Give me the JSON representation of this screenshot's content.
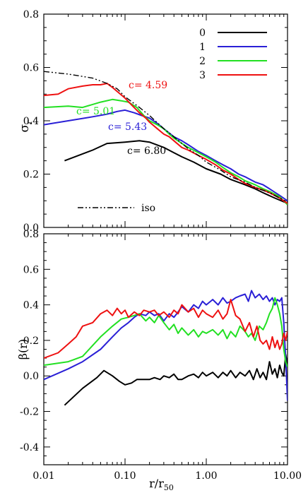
{
  "chart_data": [
    {
      "type": "line",
      "panel": "top",
      "xscale": "log",
      "xlim": [
        0.01,
        10.0
      ],
      "ylim": [
        0.0,
        0.8
      ],
      "ylabel": "σ",
      "ylabel_sub": "r",
      "xticks": [
        0.01,
        0.1,
        1.0,
        10.0
      ],
      "yticks": [
        0.0,
        0.2,
        0.4,
        0.6,
        0.8
      ],
      "ytick_labels": [
        "0.0",
        "0.2",
        "0.4",
        "0.6",
        "0.8"
      ],
      "legend": {
        "placement": "top-right",
        "entries": [
          "0",
          "1",
          "2",
          "3"
        ]
      },
      "iso_legend_label": "iso",
      "series": [
        {
          "name": "0",
          "color": "#000000",
          "values_label": "c= 6.80",
          "x": [
            0.018,
            0.04,
            0.06,
            0.1,
            0.15,
            0.2,
            0.3,
            0.4,
            0.5,
            0.7,
            1.0,
            1.5,
            2.0,
            3.0,
            4.0,
            5.0,
            7.0,
            10.0
          ],
          "y": [
            0.25,
            0.29,
            0.315,
            0.32,
            0.325,
            0.32,
            0.3,
            0.28,
            0.265,
            0.245,
            0.22,
            0.2,
            0.18,
            0.16,
            0.145,
            0.13,
            0.11,
            0.09
          ]
        },
        {
          "name": "1",
          "color": "#2a1fd6",
          "values_label": "c= 5.43",
          "x": [
            0.01,
            0.02,
            0.04,
            0.06,
            0.08,
            0.1,
            0.13,
            0.16,
            0.2,
            0.25,
            0.3,
            0.4,
            0.5,
            0.6,
            0.8,
            1.0,
            1.3,
            1.6,
            2.0,
            2.5,
            3.0,
            4.0,
            5.0,
            6.0,
            8.0,
            10.0
          ],
          "y": [
            0.385,
            0.4,
            0.415,
            0.425,
            0.435,
            0.44,
            0.43,
            0.42,
            0.41,
            0.39,
            0.37,
            0.34,
            0.325,
            0.31,
            0.285,
            0.27,
            0.25,
            0.235,
            0.22,
            0.2,
            0.19,
            0.17,
            0.16,
            0.145,
            0.12,
            0.1
          ]
        },
        {
          "name": "2",
          "color": "#22e022",
          "values_label": "c= 5.01",
          "x": [
            0.01,
            0.02,
            0.03,
            0.05,
            0.07,
            0.09,
            0.11,
            0.14,
            0.17,
            0.2,
            0.25,
            0.3,
            0.35,
            0.4,
            0.5,
            0.6,
            0.8,
            1.0,
            1.3,
            1.6,
            2.0,
            2.5,
            3.0,
            4.0,
            5.0,
            6.0,
            8.0,
            10.0
          ],
          "y": [
            0.45,
            0.455,
            0.45,
            0.47,
            0.48,
            0.475,
            0.47,
            0.45,
            0.42,
            0.4,
            0.385,
            0.37,
            0.35,
            0.335,
            0.315,
            0.3,
            0.28,
            0.265,
            0.245,
            0.225,
            0.205,
            0.19,
            0.175,
            0.16,
            0.145,
            0.135,
            0.115,
            0.085
          ]
        },
        {
          "name": "3",
          "color": "#ee1111",
          "values_label": "c= 4.59",
          "x": [
            0.01,
            0.015,
            0.02,
            0.03,
            0.04,
            0.05,
            0.06,
            0.07,
            0.08,
            0.1,
            0.12,
            0.15,
            0.18,
            0.2,
            0.25,
            0.3,
            0.35,
            0.4,
            0.5,
            0.6,
            0.8,
            1.0,
            1.3,
            1.6,
            2.0,
            2.5,
            3.0,
            4.0,
            5.0,
            6.0,
            8.0,
            10.0
          ],
          "y": [
            0.495,
            0.5,
            0.52,
            0.53,
            0.535,
            0.535,
            0.54,
            0.525,
            0.51,
            0.485,
            0.46,
            0.43,
            0.41,
            0.395,
            0.37,
            0.35,
            0.34,
            0.325,
            0.3,
            0.29,
            0.27,
            0.255,
            0.235,
            0.215,
            0.2,
            0.18,
            0.165,
            0.15,
            0.14,
            0.13,
            0.11,
            0.09
          ]
        },
        {
          "name": "iso",
          "color": "#000000",
          "dash": "dash-dot-dot",
          "x": [
            0.01,
            0.02,
            0.04,
            0.06,
            0.08,
            0.1,
            0.15,
            0.2,
            0.3,
            0.4,
            0.6,
            0.8,
            1.0,
            1.5,
            2.0,
            3.0,
            4.0,
            6.0,
            8.0,
            10.0
          ],
          "y": [
            0.585,
            0.575,
            0.56,
            0.54,
            0.52,
            0.49,
            0.45,
            0.42,
            0.37,
            0.34,
            0.295,
            0.27,
            0.245,
            0.215,
            0.19,
            0.17,
            0.15,
            0.13,
            0.11,
            0.095
          ]
        }
      ]
    },
    {
      "type": "line",
      "panel": "bottom",
      "xscale": "log",
      "xlim": [
        0.01,
        10.0
      ],
      "ylim": [
        -0.5,
        0.8
      ],
      "xlabel": "r/r",
      "xlabel_sub": "50",
      "ylabel": "β(r)",
      "xticks": [
        0.01,
        0.1,
        1.0,
        10.0
      ],
      "xtick_labels": [
        "0.01",
        "0.10",
        "1.00",
        "10.00"
      ],
      "yticks": [
        -0.4,
        -0.2,
        0.0,
        0.2,
        0.4,
        0.6,
        0.8
      ],
      "ytick_labels": [
        "-0.4",
        "-0.2",
        "0.0",
        "0.2",
        "0.4",
        "0.6",
        "0.8"
      ],
      "series": [
        {
          "name": "0",
          "color": "#000000",
          "x": [
            0.018,
            0.03,
            0.045,
            0.055,
            0.07,
            0.085,
            0.1,
            0.12,
            0.14,
            0.17,
            0.2,
            0.23,
            0.27,
            0.3,
            0.35,
            0.4,
            0.45,
            0.5,
            0.6,
            0.7,
            0.8,
            0.9,
            1.0,
            1.2,
            1.4,
            1.6,
            1.8,
            2.0,
            2.3,
            2.6,
            3.0,
            3.4,
            3.8,
            4.2,
            4.6,
            5.0,
            5.5,
            6.0,
            6.5,
            7.0,
            7.5,
            8.0,
            8.5,
            9.0,
            9.5,
            10.0
          ],
          "y": [
            -0.165,
            -0.07,
            -0.01,
            0.03,
            0.0,
            -0.03,
            -0.05,
            -0.04,
            -0.02,
            -0.02,
            -0.02,
            -0.01,
            -0.02,
            0.0,
            -0.01,
            0.01,
            -0.02,
            -0.02,
            0.0,
            0.01,
            -0.01,
            0.02,
            0.0,
            0.02,
            -0.01,
            0.02,
            0.0,
            0.03,
            -0.01,
            0.02,
            0.0,
            0.03,
            -0.02,
            0.04,
            -0.01,
            0.02,
            -0.02,
            0.08,
            0.01,
            0.04,
            -0.01,
            0.06,
            0.02,
            0.0,
            0.12,
            0.06
          ]
        },
        {
          "name": "1",
          "color": "#2a1fd6",
          "x": [
            0.01,
            0.02,
            0.03,
            0.05,
            0.07,
            0.09,
            0.11,
            0.13,
            0.15,
            0.18,
            0.2,
            0.23,
            0.26,
            0.3,
            0.35,
            0.4,
            0.45,
            0.5,
            0.6,
            0.7,
            0.8,
            0.9,
            1.0,
            1.2,
            1.4,
            1.6,
            1.8,
            2.0,
            2.3,
            2.6,
            3.0,
            3.3,
            3.6,
            4.0,
            4.5,
            5.0,
            5.5,
            6.0,
            6.5,
            7.0,
            7.5,
            8.0,
            8.5,
            9.0,
            9.5,
            10.0
          ],
          "y": [
            -0.02,
            0.04,
            0.08,
            0.15,
            0.22,
            0.27,
            0.3,
            0.33,
            0.35,
            0.34,
            0.36,
            0.34,
            0.35,
            0.31,
            0.35,
            0.33,
            0.36,
            0.39,
            0.36,
            0.4,
            0.38,
            0.42,
            0.4,
            0.43,
            0.4,
            0.44,
            0.41,
            0.42,
            0.44,
            0.45,
            0.46,
            0.42,
            0.48,
            0.44,
            0.46,
            0.43,
            0.45,
            0.42,
            0.44,
            0.4,
            0.43,
            0.42,
            0.44,
            0.3,
            0.1,
            -0.14
          ]
        },
        {
          "name": "2",
          "color": "#22e022",
          "x": [
            0.01,
            0.02,
            0.03,
            0.05,
            0.07,
            0.09,
            0.11,
            0.13,
            0.15,
            0.18,
            0.2,
            0.23,
            0.26,
            0.3,
            0.35,
            0.4,
            0.45,
            0.5,
            0.6,
            0.7,
            0.8,
            0.9,
            1.0,
            1.2,
            1.4,
            1.6,
            1.8,
            2.0,
            2.3,
            2.6,
            3.0,
            3.3,
            3.6,
            4.0,
            4.5,
            5.0,
            5.5,
            6.0,
            6.5,
            7.0,
            7.5,
            8.0,
            8.5,
            9.0,
            9.5,
            10.0
          ],
          "y": [
            0.06,
            0.08,
            0.11,
            0.22,
            0.28,
            0.32,
            0.33,
            0.34,
            0.35,
            0.31,
            0.33,
            0.3,
            0.34,
            0.3,
            0.26,
            0.29,
            0.24,
            0.27,
            0.23,
            0.26,
            0.22,
            0.25,
            0.24,
            0.26,
            0.23,
            0.26,
            0.21,
            0.25,
            0.22,
            0.28,
            0.25,
            0.22,
            0.24,
            0.2,
            0.28,
            0.26,
            0.3,
            0.35,
            0.38,
            0.44,
            0.4,
            0.35,
            0.28,
            0.15,
            0.08,
            0.05
          ]
        },
        {
          "name": "3",
          "color": "#ee1111",
          "x": [
            0.01,
            0.015,
            0.02,
            0.025,
            0.03,
            0.04,
            0.05,
            0.06,
            0.07,
            0.08,
            0.09,
            0.1,
            0.11,
            0.13,
            0.15,
            0.17,
            0.2,
            0.23,
            0.26,
            0.3,
            0.35,
            0.4,
            0.45,
            0.5,
            0.6,
            0.7,
            0.8,
            0.9,
            1.0,
            1.2,
            1.4,
            1.6,
            1.8,
            2.0,
            2.3,
            2.6,
            3.0,
            3.4,
            3.8,
            4.2,
            4.6,
            5.0,
            5.5,
            6.0,
            6.5,
            7.0,
            7.5,
            8.0,
            8.5,
            9.0,
            9.5,
            10.0
          ],
          "y": [
            0.1,
            0.13,
            0.18,
            0.22,
            0.28,
            0.3,
            0.35,
            0.37,
            0.34,
            0.38,
            0.35,
            0.37,
            0.33,
            0.36,
            0.34,
            0.37,
            0.36,
            0.37,
            0.34,
            0.36,
            0.33,
            0.37,
            0.35,
            0.4,
            0.36,
            0.38,
            0.33,
            0.37,
            0.35,
            0.33,
            0.37,
            0.32,
            0.35,
            0.43,
            0.34,
            0.32,
            0.25,
            0.3,
            0.22,
            0.28,
            0.2,
            0.18,
            0.2,
            0.15,
            0.22,
            0.16,
            0.2,
            0.15,
            0.18,
            0.24,
            0.2,
            0.25
          ]
        }
      ]
    }
  ],
  "annotations": [
    {
      "text": "c= 4.59",
      "color": "#ee1111"
    },
    {
      "text": "c= 5.01",
      "color": "#22e022"
    },
    {
      "text": "c= 5.43",
      "color": "#2a1fd6"
    },
    {
      "text": "c= 6.80",
      "color": "#000000"
    }
  ]
}
